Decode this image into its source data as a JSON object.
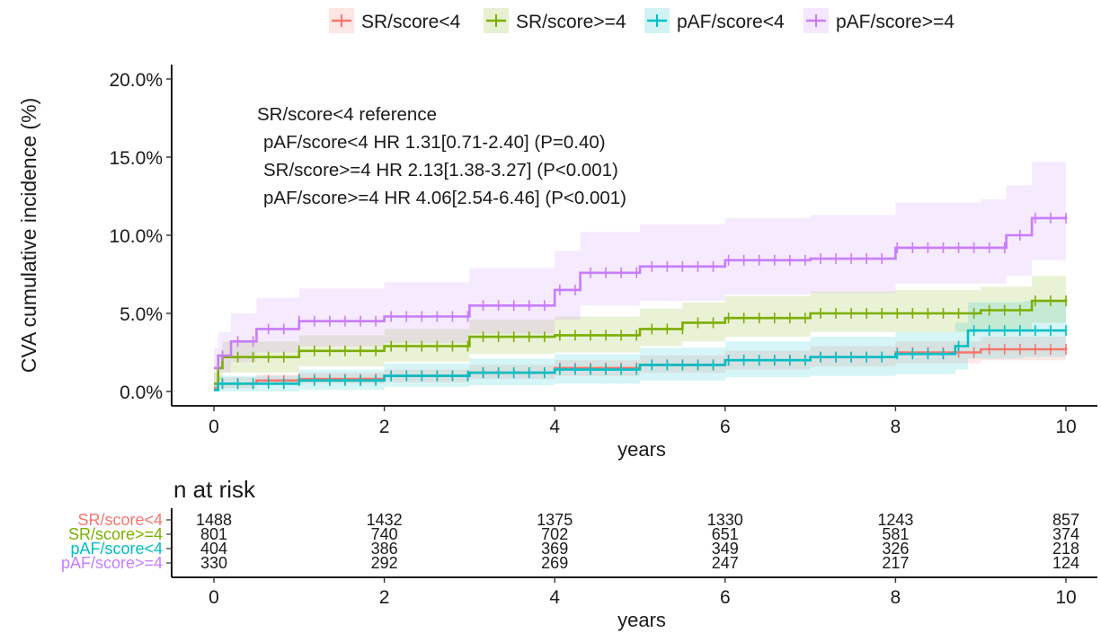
{
  "colors": {
    "SR/score<4": "#F8766D",
    "SR/score>=4": "#7CAE00",
    "pAF/score<4": "#00BFC4",
    "pAF/score>=4": "#C77CFF"
  },
  "chart_data": [
    {
      "type": "line",
      "subtype": "kaplan-meier cumulative incidence",
      "xlabel": "years",
      "ylabel": "CVA cumulative incidence (%)",
      "xlim": [
        0,
        10
      ],
      "ylim": [
        0,
        20
      ],
      "xticks": [
        "0",
        "2",
        "4",
        "6",
        "8",
        "10"
      ],
      "yticks": [
        "0.0%",
        "5.0%",
        "10.0%",
        "15.0%",
        "20.0%"
      ],
      "legend_position": "top",
      "grid": false,
      "annotations": [
        "SR/score<4 reference",
        "pAF/score<4 HR 1.31[0.71-2.40] (P=0.40)",
        "SR/score>=4 HR 2.13[1.38-3.27] (P<0.001)",
        "pAF/score>=4 HR 4.06[2.54-6.46]  (P<0.001)"
      ],
      "series": [
        {
          "name": "SR/score<4",
          "x": [
            0,
            0.05,
            0.5,
            1,
            2,
            3,
            4,
            5,
            6,
            7,
            8,
            9,
            10
          ],
          "y": [
            0.2,
            0.5,
            0.7,
            0.8,
            1.0,
            1.2,
            1.5,
            1.7,
            2.0,
            2.2,
            2.5,
            2.7,
            2.8
          ],
          "ci_low": [
            0,
            0.2,
            0.4,
            0.5,
            0.6,
            0.8,
            1.0,
            1.2,
            1.4,
            1.6,
            1.8,
            2.0,
            2.0
          ],
          "ci_high": [
            0.6,
            0.9,
            1.1,
            1.2,
            1.4,
            1.7,
            2.0,
            2.3,
            2.6,
            2.9,
            3.2,
            3.5,
            3.6
          ]
        },
        {
          "name": "SR/score>=4",
          "x": [
            0,
            0.05,
            0.1,
            1,
            2,
            3,
            4,
            5,
            5.5,
            6,
            7,
            8,
            9,
            9.6,
            10
          ],
          "y": [
            0.5,
            1.5,
            2.2,
            2.6,
            2.9,
            3.5,
            3.6,
            4.0,
            4.4,
            4.7,
            5.0,
            5.0,
            5.2,
            5.8,
            5.9
          ],
          "ci_low": [
            0,
            0.7,
            1.2,
            1.6,
            1.9,
            2.4,
            2.5,
            2.9,
            3.2,
            3.5,
            3.8,
            3.8,
            4.0,
            4.4,
            4.5
          ],
          "ci_high": [
            1.2,
            2.3,
            3.2,
            3.6,
            4.0,
            4.6,
            4.8,
            5.3,
            5.7,
            6.1,
            6.4,
            6.5,
            6.7,
            7.4,
            7.5
          ]
        },
        {
          "name": "pAF/score<4",
          "x": [
            0,
            0.05,
            1,
            2,
            3,
            4,
            5,
            6,
            7,
            8,
            8.7,
            8.85,
            9.5,
            10
          ],
          "y": [
            0.1,
            0.5,
            0.7,
            1.0,
            1.2,
            1.4,
            1.7,
            2.0,
            2.2,
            2.4,
            2.9,
            3.9,
            3.9,
            3.9
          ],
          "ci_low": [
            0,
            0,
            0.1,
            0.3,
            0.4,
            0.5,
            0.7,
            0.9,
            1.0,
            1.1,
            1.4,
            2.1,
            2.2,
            2.2
          ],
          "ci_high": [
            0.5,
            1.0,
            1.4,
            1.8,
            2.1,
            2.4,
            2.8,
            3.2,
            3.5,
            3.8,
            4.4,
            5.7,
            5.8,
            5.8
          ]
        },
        {
          "name": "pAF/score>=4",
          "x": [
            0,
            0.05,
            0.2,
            0.5,
            1,
            2,
            3,
            4,
            4.3,
            5,
            6,
            7,
            8,
            9,
            9.3,
            9.6,
            10
          ],
          "y": [
            1.5,
            2.3,
            3.2,
            4.0,
            4.5,
            4.8,
            5.5,
            6.5,
            7.6,
            8.0,
            8.4,
            8.5,
            9.2,
            9.2,
            10.0,
            11.1,
            11.2
          ],
          "ci_low": [
            0.5,
            1.2,
            1.9,
            2.5,
            2.9,
            3.1,
            3.7,
            4.6,
            5.5,
            5.8,
            6.2,
            6.3,
            6.9,
            6.9,
            7.4,
            8.4,
            8.5
          ],
          "ci_high": [
            2.8,
            3.8,
            5.0,
            6.0,
            6.6,
            7.0,
            7.9,
            9.0,
            10.2,
            10.7,
            11.1,
            11.3,
            12.1,
            12.3,
            13.2,
            14.7,
            14.8
          ]
        }
      ]
    },
    {
      "type": "table",
      "title": "n at risk",
      "xlabel": "years",
      "xticks": [
        "0",
        "2",
        "4",
        "6",
        "8",
        "10"
      ],
      "rows": [
        {
          "name": "SR/score<4",
          "values": [
            "1488",
            "1432",
            "1375",
            "1330",
            "1243",
            "857"
          ]
        },
        {
          "name": "SR/score>=4",
          "values": [
            "801",
            "740",
            "702",
            "651",
            "581",
            "374"
          ]
        },
        {
          "name": "pAF/score<4",
          "values": [
            "404",
            "386",
            "369",
            "349",
            "326",
            "218"
          ]
        },
        {
          "name": "pAF/score>=4",
          "values": [
            "330",
            "292",
            "269",
            "247",
            "217",
            "124"
          ]
        }
      ]
    }
  ]
}
